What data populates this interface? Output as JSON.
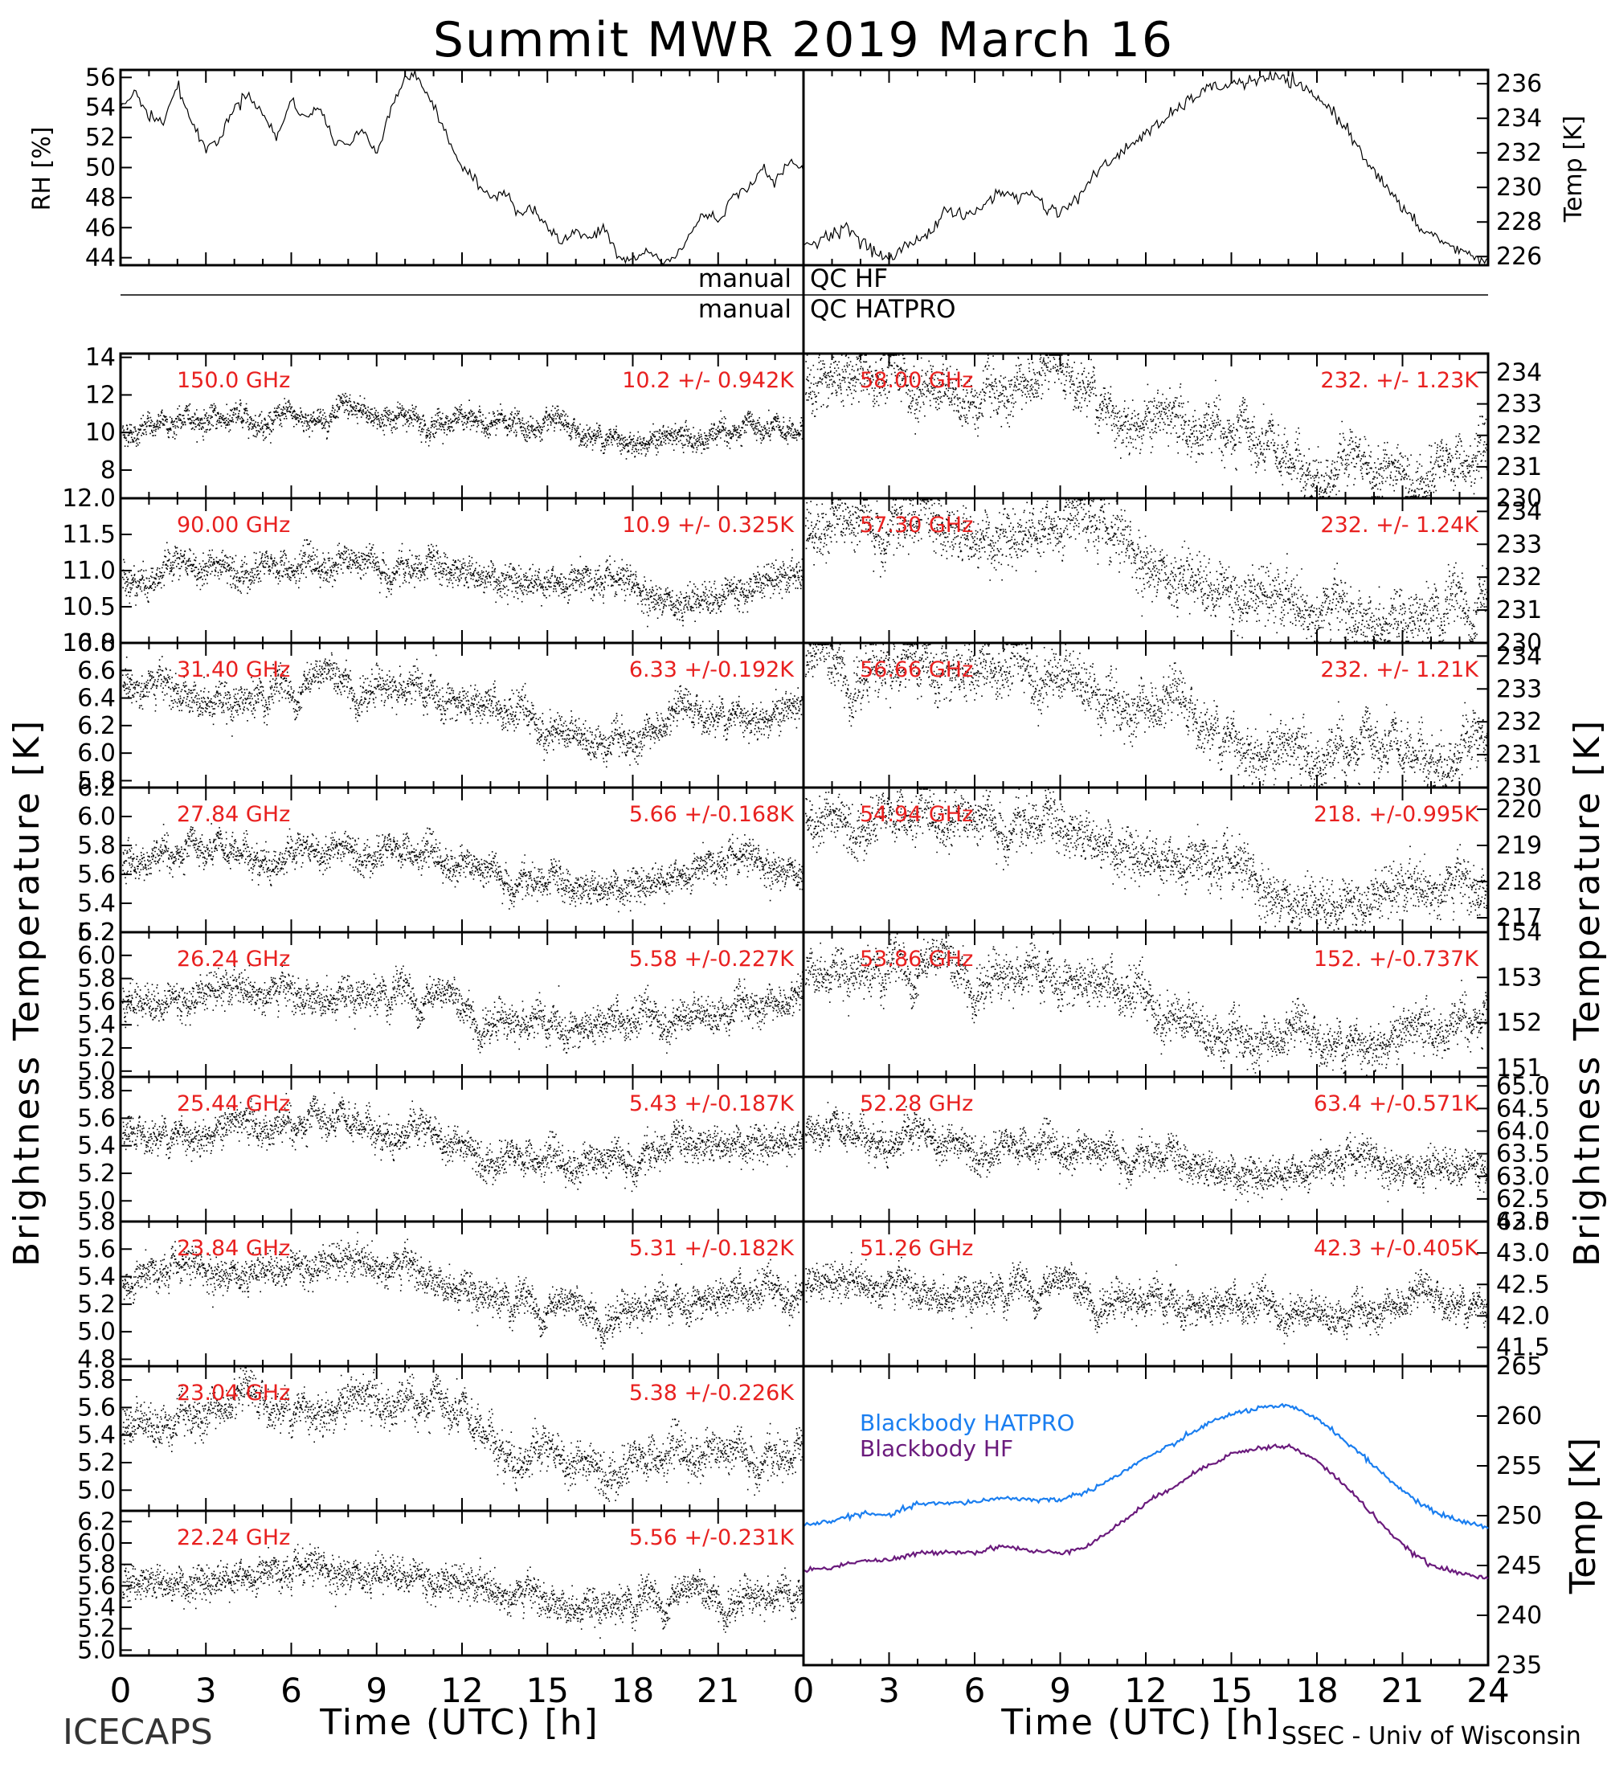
{
  "title": "Summit MWR 2019 March 16",
  "footer_left": "ICECAPS",
  "footer_right": "SSEC - Univ of Wisconsin",
  "x_axis": {
    "label": "Time (UTC) [h]",
    "ticks_left": [
      "0",
      "3",
      "6",
      "9",
      "12",
      "15",
      "18",
      "21"
    ],
    "ticks_right": [
      "0",
      "3",
      "6",
      "9",
      "12",
      "15",
      "18",
      "21",
      "24"
    ],
    "range": [
      0,
      24
    ]
  },
  "qc": {
    "hf": {
      "left": "manual",
      "right": "QC HF"
    },
    "hatpro": {
      "left": "manual",
      "right": "QC HATPRO"
    }
  },
  "y_label_left": "Brightness Temperature [K]",
  "y_label_right": "Brightness Temperature [K]",
  "colors": {
    "text_red": "#e8201f",
    "hatpro": "#1a7ef0",
    "hf": "#6a1a7c",
    "data": "#000000"
  },
  "chart_data": [
    {
      "id": "rh",
      "type": "line",
      "ylabel": "RH [%]",
      "ylim": [
        43.5,
        56.5
      ],
      "yticks": [
        "44",
        "46",
        "48",
        "50",
        "52",
        "54",
        "56"
      ],
      "x": [
        0,
        0.5,
        1,
        1.5,
        2,
        2.5,
        3,
        3.5,
        4,
        4.5,
        5,
        5.5,
        6,
        6.5,
        7,
        7.5,
        8,
        8.5,
        9,
        9.5,
        10,
        10.5,
        11,
        11.5,
        12,
        12.5,
        13,
        13.5,
        14,
        14.5,
        15,
        15.5,
        16,
        16.5,
        17,
        17.5,
        18,
        18.5,
        19,
        19.5,
        20,
        20.5,
        21,
        21.5,
        22,
        22.5,
        23,
        23.5,
        24
      ],
      "y": [
        54,
        55,
        53.5,
        53,
        55.5,
        53,
        51.2,
        52,
        54,
        55,
        53.5,
        52,
        54.5,
        53.3,
        54,
        51.8,
        51.5,
        52.5,
        51,
        54,
        56,
        56,
        54,
        52,
        50,
        49,
        48,
        48.5,
        47,
        47.3,
        46,
        45,
        45.8,
        45.2,
        46,
        44,
        43.8,
        44.5,
        43.7,
        44,
        45.5,
        47,
        46.5,
        48,
        48.5,
        50,
        49,
        50.3,
        50
      ]
    },
    {
      "id": "temp",
      "type": "line",
      "ylabel": "Temp [K]",
      "ylim": [
        225.5,
        236.8
      ],
      "yticks": [
        "226",
        "228",
        "230",
        "232",
        "234",
        "236"
      ],
      "x": [
        0,
        0.5,
        1,
        1.5,
        2,
        2.5,
        3,
        3.5,
        4,
        4.5,
        5,
        5.5,
        6,
        6.5,
        7,
        7.5,
        8,
        8.5,
        9,
        9.5,
        10,
        10.5,
        11,
        11.5,
        12,
        12.5,
        13,
        13.5,
        14,
        14.5,
        15,
        15.5,
        16,
        16.5,
        17,
        17.5,
        18,
        18.5,
        19,
        19.5,
        20,
        20.5,
        21,
        21.5,
        22,
        22.5,
        23,
        23.5,
        24
      ],
      "y": [
        226.5,
        227,
        227.3,
        227.8,
        226.8,
        226.3,
        225.8,
        226.5,
        227,
        227.5,
        228.8,
        228.3,
        228.5,
        229.3,
        229.8,
        229.3,
        229.8,
        228.8,
        228.6,
        229.2,
        230.3,
        231.2,
        231.8,
        232.5,
        233.2,
        233.6,
        234.4,
        235,
        235.6,
        235.8,
        236,
        236.1,
        236.2,
        236.4,
        236.2,
        235.7,
        235.2,
        234.5,
        233.5,
        232.2,
        231,
        229.8,
        228.8,
        227.8,
        227.3,
        226.8,
        226.3,
        226,
        225.8
      ]
    },
    {
      "id": "f150",
      "side": "left",
      "type": "scatter",
      "freq": "150.0 GHz",
      "stat": "10.2 +/- 0.942K",
      "ylim": [
        6.5,
        14.2
      ],
      "yticks": [
        8,
        10,
        12,
        14
      ],
      "ytick_labels": [
        "8",
        "10",
        "12",
        "14"
      ],
      "noise": 0.942,
      "x": [
        0,
        2,
        4,
        6,
        8,
        10,
        12,
        14,
        16,
        18,
        20,
        22,
        24
      ],
      "y": [
        10,
        10.6,
        10.8,
        10.7,
        10.9,
        10.8,
        10.6,
        10.4,
        9.9,
        9.7,
        9.6,
        9.9,
        10
      ]
    },
    {
      "id": "f90",
      "side": "left",
      "type": "scatter",
      "freq": "90.00 GHz",
      "stat": "10.9 +/- 0.325K",
      "ylim": [
        10.0,
        12.0
      ],
      "yticks": [
        10.0,
        10.5,
        11.0,
        11.5,
        12.0
      ],
      "ytick_labels": [
        "10.0",
        "10.5",
        "11.0",
        "11.5",
        "12.0"
      ],
      "noise": 0.325,
      "x": [
        0,
        2,
        4,
        6,
        8,
        10,
        12,
        14,
        16,
        18,
        20,
        22,
        24
      ],
      "y": [
        10.9,
        11.0,
        11.1,
        11.0,
        11.1,
        11.0,
        11.0,
        10.9,
        10.8,
        10.7,
        10.6,
        10.8,
        10.9
      ]
    },
    {
      "id": "f31",
      "side": "left",
      "type": "scatter",
      "freq": "31.40 GHz",
      "stat": "6.33 +/-0.192K",
      "ylim": [
        5.75,
        6.8
      ],
      "yticks": [
        5.8,
        6.0,
        6.2,
        6.4,
        6.6,
        6.8
      ],
      "ytick_labels": [
        "5.8",
        "6.0",
        "6.2",
        "6.4",
        "6.6",
        "6.8"
      ],
      "noise": 0.192,
      "x": [
        0,
        2,
        4,
        6,
        8,
        10,
        12,
        14,
        16,
        18,
        20,
        22,
        24
      ],
      "y": [
        6.5,
        6.45,
        6.4,
        6.45,
        6.5,
        6.45,
        6.35,
        6.25,
        6.15,
        6.1,
        6.25,
        6.3,
        6.3
      ]
    },
    {
      "id": "f27",
      "side": "left",
      "type": "scatter",
      "freq": "27.84 GHz",
      "stat": "5.66 +/-0.168K",
      "ylim": [
        5.2,
        6.2
      ],
      "yticks": [
        5.2,
        5.4,
        5.6,
        5.8,
        6.0,
        6.2
      ],
      "ytick_labels": [
        "5.2",
        "5.4",
        "5.6",
        "5.8",
        "6.0",
        "6.2"
      ],
      "noise": 0.168,
      "x": [
        0,
        2,
        4,
        6,
        8,
        10,
        12,
        14,
        16,
        18,
        20,
        22,
        24
      ],
      "y": [
        5.7,
        5.7,
        5.75,
        5.7,
        5.8,
        5.75,
        5.65,
        5.55,
        5.5,
        5.55,
        5.6,
        5.65,
        5.65
      ]
    },
    {
      "id": "f26",
      "side": "left",
      "type": "scatter",
      "freq": "26.24 GHz",
      "stat": "5.58 +/-0.227K",
      "ylim": [
        4.95,
        6.2
      ],
      "yticks": [
        5.0,
        5.2,
        5.4,
        5.6,
        5.8,
        6.0,
        6.2
      ],
      "ytick_labels": [
        "5.0",
        "5.2",
        "5.4",
        "5.6",
        "5.8",
        "6.0",
        "6.2"
      ],
      "noise": 0.227,
      "x": [
        0,
        2,
        4,
        6,
        8,
        10,
        12,
        14,
        16,
        18,
        20,
        22,
        24
      ],
      "y": [
        5.6,
        5.65,
        5.7,
        5.65,
        5.7,
        5.65,
        5.5,
        5.4,
        5.35,
        5.4,
        5.5,
        5.6,
        5.55
      ]
    },
    {
      "id": "f25",
      "side": "left",
      "type": "scatter",
      "freq": "25.44 GHz",
      "stat": "5.43 +/-0.187K",
      "ylim": [
        4.85,
        5.9
      ],
      "yticks": [
        5.0,
        5.2,
        5.4,
        5.6,
        5.8
      ],
      "ytick_labels": [
        "5.0",
        "5.2",
        "5.4",
        "5.6",
        "5.8"
      ],
      "noise": 0.187,
      "x": [
        0,
        2,
        4,
        6,
        8,
        10,
        12,
        14,
        16,
        18,
        20,
        22,
        24
      ],
      "y": [
        5.45,
        5.5,
        5.55,
        5.5,
        5.55,
        5.5,
        5.4,
        5.3,
        5.25,
        5.3,
        5.4,
        5.45,
        5.45
      ]
    },
    {
      "id": "f23_84",
      "side": "left",
      "type": "scatter",
      "freq": "23.84 GHz",
      "stat": "5.31 +/-0.182K",
      "ylim": [
        4.75,
        5.8
      ],
      "yticks": [
        4.8,
        5.0,
        5.2,
        5.4,
        5.6,
        5.8
      ],
      "ytick_labels": [
        "4.8",
        "5.0",
        "5.2",
        "5.4",
        "5.6",
        "5.8"
      ],
      "noise": 0.182,
      "x": [
        0,
        2,
        4,
        6,
        8,
        10,
        12,
        14,
        16,
        18,
        20,
        22,
        24
      ],
      "y": [
        5.35,
        5.4,
        5.45,
        5.5,
        5.5,
        5.45,
        5.35,
        5.2,
        5.1,
        5.15,
        5.2,
        5.25,
        5.3
      ]
    },
    {
      "id": "f23_04",
      "side": "left",
      "type": "scatter",
      "freq": "23.04 GHz",
      "stat": "5.38 +/-0.226K",
      "ylim": [
        4.85,
        5.9
      ],
      "yticks": [
        5.0,
        5.2,
        5.4,
        5.6,
        5.8
      ],
      "ytick_labels": [
        "5.0",
        "5.2",
        "5.4",
        "5.6",
        "5.8"
      ],
      "noise": 0.226,
      "x": [
        0,
        2,
        4,
        6,
        8,
        10,
        12,
        14,
        16,
        18,
        20,
        22,
        24
      ],
      "y": [
        5.5,
        5.55,
        5.6,
        5.6,
        5.65,
        5.6,
        5.5,
        5.25,
        5.2,
        5.2,
        5.25,
        5.25,
        5.2
      ]
    },
    {
      "id": "f22",
      "side": "left",
      "type": "scatter",
      "freq": "22.24 GHz",
      "stat": "5.56 +/-0.231K",
      "ylim": [
        4.95,
        6.3
      ],
      "yticks": [
        5.0,
        5.2,
        5.4,
        5.6,
        5.8,
        6.0,
        6.2
      ],
      "ytick_labels": [
        "5.0",
        "5.2",
        "5.4",
        "5.6",
        "5.8",
        "6.0",
        "6.2"
      ],
      "noise": 0.231,
      "x": [
        0,
        2,
        4,
        6,
        8,
        10,
        12,
        14,
        16,
        18,
        20,
        22,
        24
      ],
      "y": [
        5.65,
        5.65,
        5.7,
        5.65,
        5.75,
        5.75,
        5.6,
        5.5,
        5.45,
        5.45,
        5.45,
        5.5,
        5.45
      ]
    },
    {
      "id": "f58",
      "side": "right",
      "type": "scatter",
      "freq": "58.00 GHz",
      "stat": "232. +/- 1.23K",
      "ylim": [
        230,
        234.6
      ],
      "yticks": [
        230,
        231,
        232,
        233,
        234
      ],
      "ytick_labels": [
        "230",
        "231",
        "232",
        "233",
        "234"
      ],
      "noise": 1.23,
      "x": [
        0,
        2,
        4,
        6,
        8,
        10,
        10.7,
        12,
        14,
        16,
        18,
        20,
        22,
        24
      ],
      "y": [
        233.8,
        233.6,
        233.7,
        233.4,
        233.6,
        233.6,
        232.8,
        232.6,
        232.1,
        231.4,
        230.9,
        230.9,
        231.0,
        231.1
      ]
    },
    {
      "id": "f57",
      "side": "right",
      "type": "scatter",
      "freq": "57.30 GHz",
      "stat": "232. +/- 1.24K",
      "ylim": [
        230,
        234.4
      ],
      "yticks": [
        230,
        231,
        232,
        233,
        234
      ],
      "ytick_labels": [
        "230",
        "231",
        "232",
        "233",
        "234"
      ],
      "noise": 1.24,
      "x": [
        0,
        2,
        4,
        6,
        8,
        10,
        10.7,
        12,
        14,
        16,
        18,
        20,
        22,
        24
      ],
      "y": [
        233.6,
        233.5,
        233.6,
        233.3,
        233.5,
        233.5,
        232.7,
        232.5,
        232.0,
        231.4,
        230.9,
        230.9,
        231.0,
        231.1
      ]
    },
    {
      "id": "f56",
      "side": "right",
      "type": "scatter",
      "freq": "56.66 GHz",
      "stat": "232. +/- 1.21K",
      "ylim": [
        230,
        234.4
      ],
      "yticks": [
        230,
        231,
        232,
        233,
        234
      ],
      "ytick_labels": [
        "230",
        "231",
        "232",
        "233",
        "234"
      ],
      "noise": 1.21,
      "x": [
        0,
        2,
        4,
        6,
        8,
        10,
        10.7,
        12,
        14,
        16,
        18,
        20,
        22,
        24
      ],
      "y": [
        233.6,
        233.5,
        233.6,
        233.3,
        233.5,
        233.5,
        232.6,
        232.4,
        231.9,
        231.3,
        230.8,
        230.9,
        231.0,
        231.1
      ]
    },
    {
      "id": "f54",
      "side": "right",
      "type": "scatter",
      "freq": "54.94 GHz",
      "stat": "218. +/-0.995K",
      "ylim": [
        216.6,
        220.6
      ],
      "yticks": [
        217,
        218,
        219,
        220
      ],
      "ytick_labels": [
        "217",
        "218",
        "219",
        "220"
      ],
      "noise": 0.995,
      "x": [
        0,
        2,
        4,
        6,
        8,
        10,
        12,
        14,
        16,
        18,
        20,
        22,
        24
      ],
      "y": [
        219.8,
        219.8,
        219.7,
        219.6,
        219.5,
        219.3,
        218.8,
        218.3,
        217.8,
        217.5,
        217.6,
        217.8,
        217.8
      ]
    },
    {
      "id": "f53",
      "side": "right",
      "type": "scatter",
      "freq": "53.86 GHz",
      "stat": "152. +/-0.737K",
      "ylim": [
        150.8,
        154.0
      ],
      "yticks": [
        151,
        152,
        153,
        154
      ],
      "ytick_labels": [
        "151",
        "152",
        "153",
        "154"
      ],
      "noise": 0.737,
      "x": [
        0,
        2,
        4,
        6,
        8,
        10,
        12,
        14,
        16,
        18,
        20,
        22,
        24
      ],
      "y": [
        153.3,
        153.2,
        153.1,
        153.0,
        153.0,
        152.8,
        152.4,
        152.0,
        151.6,
        151.5,
        151.7,
        151.8,
        151.9
      ]
    },
    {
      "id": "f52",
      "side": "right",
      "type": "scatter",
      "freq": "52.28 GHz",
      "stat": "63.4 +/-0.571K",
      "ylim": [
        62.0,
        65.2
      ],
      "yticks": [
        62.0,
        62.5,
        63.0,
        63.5,
        64.0,
        64.5,
        65.0
      ],
      "ytick_labels": [
        "62.0",
        "62.5",
        "63.0",
        "63.5",
        "64.0",
        "64.5",
        "65.0"
      ],
      "noise": 0.571,
      "x": [
        0,
        2,
        4,
        6,
        8,
        10,
        12,
        14,
        16,
        18,
        20,
        22,
        24
      ],
      "y": [
        63.9,
        63.9,
        63.8,
        63.7,
        63.6,
        63.5,
        63.4,
        63.2,
        63.1,
        63.1,
        63.2,
        63.3,
        63.3
      ]
    },
    {
      "id": "f51",
      "side": "right",
      "type": "scatter",
      "freq": "51.26 GHz",
      "stat": "42.3 +/-0.405K",
      "ylim": [
        41.2,
        43.5
      ],
      "yticks": [
        41.5,
        42.0,
        42.5,
        43.0,
        43.5
      ],
      "ytick_labels": [
        "41.5",
        "42.0",
        "42.5",
        "43.0",
        "43.5"
      ],
      "noise": 0.405,
      "x": [
        0,
        2,
        4,
        6,
        8,
        10,
        12,
        14,
        16,
        18,
        20,
        22,
        24
      ],
      "y": [
        42.5,
        42.5,
        42.4,
        42.4,
        42.4,
        42.3,
        42.2,
        42.1,
        42.1,
        42.1,
        42.1,
        42.2,
        42.2
      ]
    },
    {
      "id": "blackbody",
      "type": "line",
      "ylabel": "Temp [K]",
      "ylim": [
        235,
        265
      ],
      "yticks": [
        235,
        240,
        245,
        250,
        255,
        260,
        265
      ],
      "ytick_labels": [
        "235",
        "240",
        "245",
        "250",
        "255",
        "260",
        "265"
      ],
      "series": [
        {
          "name": "Blackbody HATPRO",
          "color": "#1a7ef0",
          "x": [
            0,
            1,
            2,
            3,
            4,
            5,
            6,
            7,
            8,
            9,
            10,
            11,
            12,
            13,
            14,
            15,
            16,
            17,
            18,
            19,
            20,
            21,
            22,
            23,
            24
          ],
          "y": [
            249,
            249.5,
            250.2,
            250,
            251.2,
            251.2,
            251.4,
            251.8,
            251.6,
            251.6,
            252.5,
            254,
            255.8,
            257.2,
            259,
            260.2,
            260.8,
            261,
            259.8,
            257.5,
            255,
            252.5,
            250.5,
            249.5,
            248.8
          ]
        },
        {
          "name": "Blackbody HF",
          "color": "#6a1a7c",
          "x": [
            0,
            1,
            2,
            3,
            4,
            5,
            6,
            7,
            8,
            9,
            10,
            11,
            12,
            13,
            14,
            15,
            16,
            17,
            18,
            19,
            20,
            21,
            22,
            23,
            24
          ],
          "y": [
            244.5,
            244.8,
            245.5,
            245.5,
            246.2,
            246.4,
            246.3,
            247,
            246.4,
            246.3,
            247,
            249,
            251.2,
            253,
            254.8,
            256.2,
            256.8,
            257,
            255.5,
            253,
            250,
            247,
            245,
            244.2,
            243.8
          ]
        }
      ]
    }
  ]
}
